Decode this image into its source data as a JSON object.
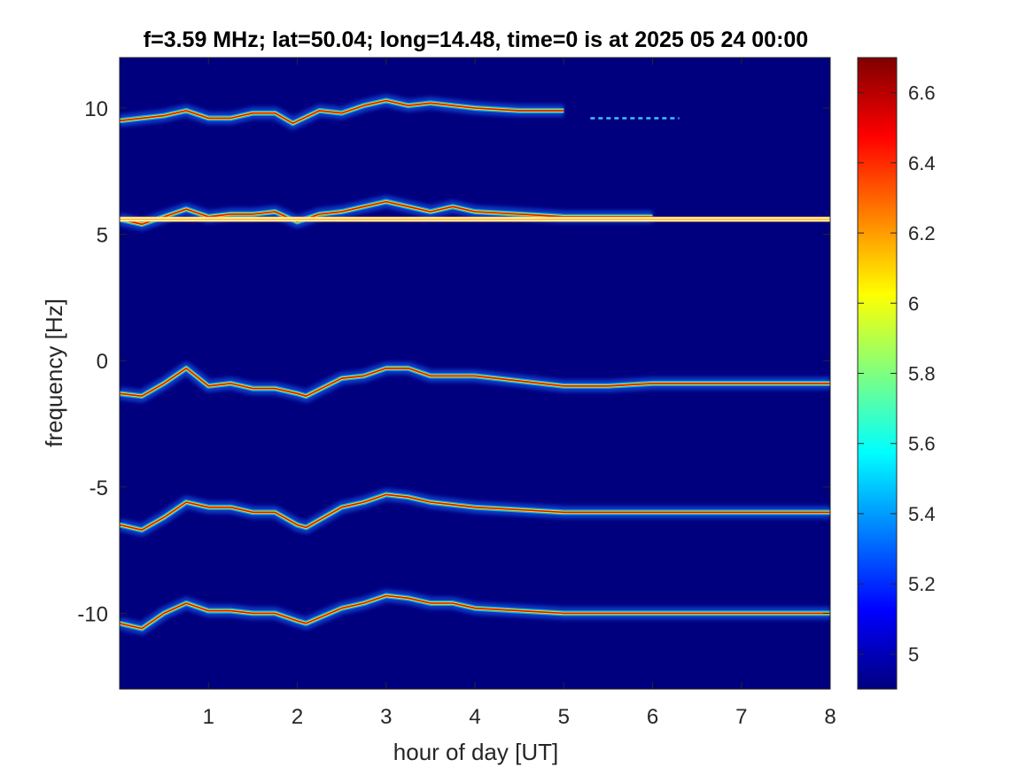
{
  "chart_data": {
    "type": "heatmap",
    "title": "f=3.59 MHz;  lat=50.04; long=14.48, time=0 is at 2025 05 24 00:00",
    "xlabel": "hour of day [UT]",
    "ylabel": "frequency [Hz]",
    "xlim": [
      0,
      8
    ],
    "ylim": [
      -13,
      12
    ],
    "x_ticks": [
      1,
      2,
      3,
      4,
      5,
      6,
      7,
      8
    ],
    "y_ticks": [
      -10,
      -5,
      0,
      5,
      10
    ],
    "colorbar": {
      "range": [
        4.9,
        6.7
      ],
      "ticks": [
        5,
        5.2,
        5.4,
        5.6,
        5.8,
        6,
        6.2,
        6.4,
        6.6
      ],
      "colormap": "jet"
    },
    "background_color": "#00007f",
    "series": [
      {
        "x": [
          0,
          0.25,
          0.5,
          0.75,
          1.0,
          1.25,
          1.5,
          1.75,
          1.95,
          2.25,
          2.5,
          2.75,
          3.0,
          3.25,
          3.5,
          3.75,
          4.0,
          4.5,
          5.0
        ],
        "y": [
          9.5,
          9.6,
          9.7,
          9.9,
          9.6,
          9.6,
          9.8,
          9.8,
          9.4,
          9.9,
          9.8,
          10.1,
          10.3,
          10.1,
          10.2,
          10.1,
          10.0,
          9.9,
          9.9
        ],
        "x_tail": [
          5.3,
          6.3
        ],
        "y_tail": 9.6
      },
      {
        "x": [
          0,
          0.25,
          0.5,
          0.75,
          1.0,
          1.25,
          1.5,
          1.75,
          2.0,
          2.25,
          2.5,
          2.75,
          3.0,
          3.25,
          3.5,
          3.75,
          4.0,
          4.5,
          5.0,
          5.5,
          6.0
        ],
        "y": [
          5.6,
          5.4,
          5.7,
          6.0,
          5.7,
          5.8,
          5.8,
          5.9,
          5.5,
          5.8,
          5.9,
          6.1,
          6.3,
          6.1,
          5.9,
          6.1,
          5.9,
          5.8,
          5.7,
          5.7,
          5.7
        ]
      },
      {
        "x": [
          0,
          0.25,
          0.5,
          0.75,
          1.0,
          1.25,
          1.5,
          1.75,
          2.0,
          2.1,
          2.5,
          2.75,
          3.0,
          3.25,
          3.5,
          3.75,
          4.0,
          4.5,
          5.0,
          5.5,
          6.0,
          6.5,
          7.0,
          8.0
        ],
        "y": [
          -1.3,
          -1.4,
          -0.9,
          -0.3,
          -1.0,
          -0.9,
          -1.1,
          -1.1,
          -1.3,
          -1.4,
          -0.7,
          -0.6,
          -0.3,
          -0.3,
          -0.6,
          -0.6,
          -0.6,
          -0.8,
          -1.0,
          -1.0,
          -0.9,
          -0.9,
          -0.9,
          -0.9
        ]
      },
      {
        "x": [
          0,
          0.25,
          0.5,
          0.75,
          1.0,
          1.25,
          1.5,
          1.75,
          2.0,
          2.1,
          2.5,
          2.75,
          3.0,
          3.25,
          3.5,
          3.75,
          4.0,
          4.5,
          5.0,
          5.5,
          6.0,
          6.5,
          7.0,
          8.0
        ],
        "y": [
          -6.5,
          -6.7,
          -6.2,
          -5.6,
          -5.8,
          -5.8,
          -6.0,
          -6.0,
          -6.5,
          -6.6,
          -5.8,
          -5.6,
          -5.3,
          -5.4,
          -5.6,
          -5.7,
          -5.8,
          -5.9,
          -6.0,
          -6.0,
          -6.0,
          -6.0,
          -6.0,
          -6.0
        ]
      },
      {
        "x": [
          0,
          0.25,
          0.5,
          0.75,
          1.0,
          1.25,
          1.5,
          1.75,
          2.0,
          2.1,
          2.5,
          2.75,
          3.0,
          3.25,
          3.5,
          3.75,
          4.0,
          4.5,
          5.0,
          5.5,
          6.0,
          6.5,
          7.0,
          8.0
        ],
        "y": [
          -10.4,
          -10.6,
          -10.0,
          -9.6,
          -9.9,
          -9.9,
          -10.0,
          -10.0,
          -10.3,
          -10.4,
          -9.8,
          -9.6,
          -9.3,
          -9.4,
          -9.6,
          -9.6,
          -9.8,
          -9.9,
          -10.0,
          -10.0,
          -10.0,
          -10.0,
          -10.0,
          -10.0
        ]
      }
    ],
    "constant_lines": [
      5.65,
      5.55
    ]
  }
}
